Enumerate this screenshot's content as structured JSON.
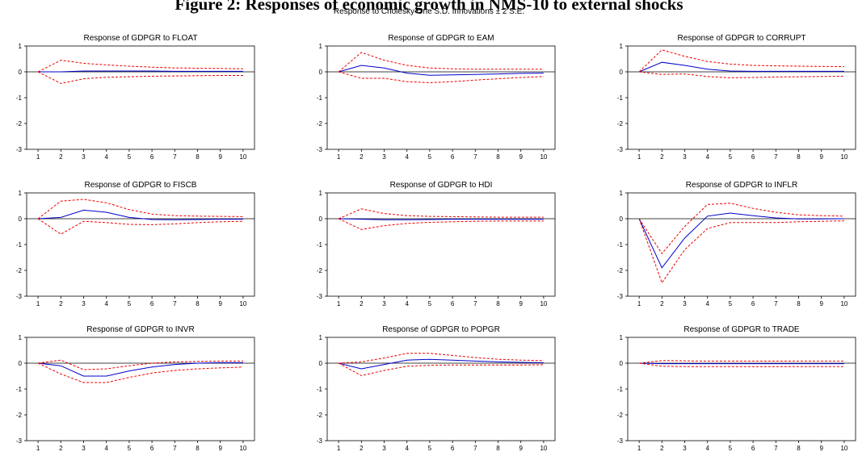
{
  "figure": {
    "title": "Figure 2: Responses of economic growth in NMS-10 to external shocks",
    "subtitle": "Response to Cholesky One S.D. Innovations ± 2 S.E."
  },
  "colors": {
    "response": "#0000cc",
    "bands": "#ee0000",
    "zero_line": "#000000"
  },
  "chart_data": [
    {
      "type": "line",
      "title": "Response of GDPGR to FLOAT",
      "x": [
        1,
        2,
        3,
        4,
        5,
        6,
        7,
        8,
        9,
        10
      ],
      "ylim": [
        -3,
        1
      ],
      "yticks": [
        -3,
        -2,
        -1,
        0,
        1
      ],
      "series": [
        {
          "values": [
            0,
            0,
            0.03,
            0.03,
            0.03,
            0.03,
            0.02,
            0.02,
            0.02,
            0.02
          ]
        },
        {
          "values": [
            0,
            0.45,
            0.33,
            0.27,
            0.22,
            0.18,
            0.15,
            0.14,
            0.13,
            0.12
          ]
        },
        {
          "values": [
            0,
            -0.45,
            -0.27,
            -0.21,
            -0.19,
            -0.17,
            -0.16,
            -0.15,
            -0.14,
            -0.14
          ]
        }
      ]
    },
    {
      "type": "line",
      "title": "Response of GDPGR to EAM",
      "x": [
        1,
        2,
        3,
        4,
        5,
        6,
        7,
        8,
        9,
        10
      ],
      "ylim": [
        -3,
        1
      ],
      "yticks": [
        -3,
        -2,
        -1,
        0,
        1
      ],
      "series": [
        {
          "values": [
            0,
            0.25,
            0.15,
            -0.05,
            -0.13,
            -0.12,
            -0.1,
            -0.08,
            -0.06,
            -0.05
          ]
        },
        {
          "values": [
            0,
            0.75,
            0.45,
            0.25,
            0.15,
            0.12,
            0.1,
            0.1,
            0.1,
            0.1
          ]
        },
        {
          "values": [
            0,
            -0.25,
            -0.25,
            -0.38,
            -0.42,
            -0.38,
            -0.32,
            -0.27,
            -0.22,
            -0.18
          ]
        }
      ]
    },
    {
      "type": "line",
      "title": "Response of GDPGR to CORRUPT",
      "x": [
        1,
        2,
        3,
        4,
        5,
        6,
        7,
        8,
        9,
        10
      ],
      "ylim": [
        -3,
        1
      ],
      "yticks": [
        -3,
        -2,
        -1,
        0,
        1
      ],
      "series": [
        {
          "values": [
            0,
            0.37,
            0.25,
            0.1,
            0.03,
            0.02,
            0.02,
            0.02,
            0.02,
            0.02
          ]
        },
        {
          "values": [
            0,
            0.85,
            0.6,
            0.4,
            0.3,
            0.25,
            0.23,
            0.22,
            0.21,
            0.2
          ]
        },
        {
          "values": [
            0,
            -0.1,
            -0.08,
            -0.18,
            -0.23,
            -0.22,
            -0.2,
            -0.19,
            -0.18,
            -0.17
          ]
        }
      ]
    },
    {
      "type": "line",
      "title": "Response of GDPGR to FISCB",
      "x": [
        1,
        2,
        3,
        4,
        5,
        6,
        7,
        8,
        9,
        10
      ],
      "ylim": [
        -3,
        1
      ],
      "yticks": [
        -3,
        -2,
        -1,
        0,
        1
      ],
      "series": [
        {
          "values": [
            0,
            0.05,
            0.33,
            0.25,
            0.05,
            -0.03,
            -0.04,
            -0.03,
            -0.02,
            -0.02
          ]
        },
        {
          "values": [
            0,
            0.68,
            0.75,
            0.62,
            0.35,
            0.18,
            0.12,
            0.1,
            0.09,
            0.08
          ]
        },
        {
          "values": [
            0,
            -0.6,
            -0.1,
            -0.15,
            -0.22,
            -0.23,
            -0.2,
            -0.15,
            -0.12,
            -0.1
          ]
        }
      ]
    },
    {
      "type": "line",
      "title": "Response of GDPGR to HDI",
      "x": [
        1,
        2,
        3,
        4,
        5,
        6,
        7,
        8,
        9,
        10
      ],
      "ylim": [
        -3,
        1
      ],
      "yticks": [
        -3,
        -2,
        -1,
        0,
        1
      ],
      "series": [
        {
          "values": [
            0,
            -0.02,
            -0.04,
            -0.04,
            -0.03,
            -0.02,
            -0.02,
            -0.02,
            -0.02,
            -0.02
          ]
        },
        {
          "values": [
            0,
            0.38,
            0.2,
            0.12,
            0.09,
            0.08,
            0.07,
            0.06,
            0.06,
            0.06
          ]
        },
        {
          "values": [
            0,
            -0.42,
            -0.27,
            -0.18,
            -0.14,
            -0.12,
            -0.1,
            -0.09,
            -0.09,
            -0.09
          ]
        }
      ]
    },
    {
      "type": "line",
      "title": "Response of GDPGR to INFLR",
      "x": [
        1,
        2,
        3,
        4,
        5,
        6,
        7,
        8,
        9,
        10
      ],
      "ylim": [
        -3,
        1
      ],
      "yticks": [
        -3,
        -2,
        -1,
        0,
        1
      ],
      "series": [
        {
          "values": [
            0,
            -1.9,
            -0.75,
            0.1,
            0.22,
            0.12,
            0.03,
            -0.01,
            -0.01,
            0
          ]
        },
        {
          "values": [
            0,
            -1.35,
            -0.3,
            0.55,
            0.6,
            0.4,
            0.25,
            0.15,
            0.12,
            0.1
          ]
        },
        {
          "values": [
            0,
            -2.48,
            -1.2,
            -0.38,
            -0.15,
            -0.15,
            -0.15,
            -0.12,
            -0.1,
            -0.08
          ]
        }
      ]
    },
    {
      "type": "line",
      "title": "Response of GDPGR to INVR",
      "x": [
        1,
        2,
        3,
        4,
        5,
        6,
        7,
        8,
        9,
        10
      ],
      "ylim": [
        -3,
        1
      ],
      "yticks": [
        -3,
        -2,
        -1,
        0,
        1
      ],
      "series": [
        {
          "values": [
            0,
            -0.1,
            -0.5,
            -0.5,
            -0.3,
            -0.15,
            -0.05,
            0,
            0.02,
            0.02
          ]
        },
        {
          "values": [
            0,
            0.12,
            -0.25,
            -0.22,
            -0.1,
            0,
            0.05,
            0.07,
            0.08,
            0.08
          ]
        },
        {
          "values": [
            0,
            -0.42,
            -0.75,
            -0.75,
            -0.55,
            -0.38,
            -0.28,
            -0.22,
            -0.18,
            -0.15
          ]
        }
      ]
    },
    {
      "type": "line",
      "title": "Response of GDPGR to POPGR",
      "x": [
        1,
        2,
        3,
        4,
        5,
        6,
        7,
        8,
        9,
        10
      ],
      "ylim": [
        -3,
        1
      ],
      "yticks": [
        -3,
        -2,
        -1,
        0,
        1
      ],
      "series": [
        {
          "values": [
            0,
            -0.22,
            -0.05,
            0.12,
            0.15,
            0.12,
            0.08,
            0.05,
            0.03,
            0.02
          ]
        },
        {
          "values": [
            0,
            0.05,
            0.2,
            0.38,
            0.38,
            0.3,
            0.22,
            0.15,
            0.12,
            0.1
          ]
        },
        {
          "values": [
            0,
            -0.48,
            -0.28,
            -0.12,
            -0.08,
            -0.07,
            -0.07,
            -0.07,
            -0.07,
            -0.06
          ]
        }
      ]
    },
    {
      "type": "line",
      "title": "Response of GDPGR to TRADE",
      "x": [
        1,
        2,
        3,
        4,
        5,
        6,
        7,
        8,
        9,
        10
      ],
      "ylim": [
        -3,
        1
      ],
      "yticks": [
        -3,
        -2,
        -1,
        0,
        1
      ],
      "series": [
        {
          "values": [
            0,
            -0.02,
            -0.02,
            -0.02,
            -0.02,
            -0.02,
            -0.02,
            -0.02,
            -0.02,
            -0.02
          ]
        },
        {
          "values": [
            0,
            0.1,
            0.09,
            0.08,
            0.08,
            0.08,
            0.08,
            0.08,
            0.08,
            0.08
          ]
        },
        {
          "values": [
            0,
            -0.12,
            -0.13,
            -0.13,
            -0.13,
            -0.13,
            -0.13,
            -0.13,
            -0.13,
            -0.13
          ]
        }
      ]
    }
  ]
}
